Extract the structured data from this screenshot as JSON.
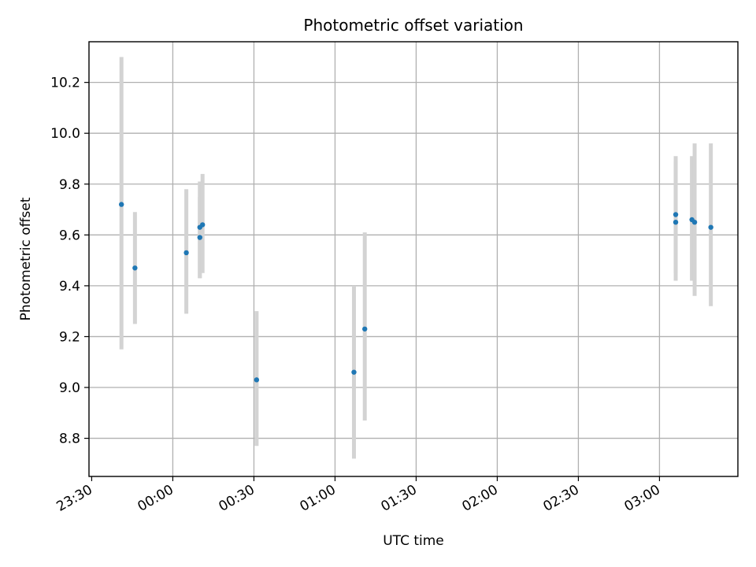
{
  "chart_data": {
    "type": "scatter",
    "title": "Photometric offset variation",
    "xlabel": "UTC time",
    "ylabel": "Photometric offset",
    "grid": true,
    "x_ticks": [
      "23:30",
      "00:00",
      "00:30",
      "01:00",
      "01:30",
      "02:00",
      "02:30",
      "03:00"
    ],
    "y_ticks": [
      "8.8",
      "9.0",
      "9.2",
      "9.4",
      "9.6",
      "9.8",
      "10.0",
      "10.2"
    ],
    "xlim": [
      "23:29",
      "03:29"
    ],
    "ylim": [
      8.65,
      10.36
    ],
    "point_color": "#1f77b4",
    "errorbar_color": "#d3d3d3",
    "points": [
      {
        "x": "23:41",
        "y": 9.72,
        "ylow": 9.15,
        "yhigh": 10.3
      },
      {
        "x": "23:46",
        "y": 9.47,
        "ylow": 9.25,
        "yhigh": 9.69
      },
      {
        "x": "00:05",
        "y": 9.53,
        "ylow": 9.29,
        "yhigh": 9.78
      },
      {
        "x": "00:10",
        "y": 9.59,
        "ylow": 9.43,
        "yhigh": 9.75
      },
      {
        "x": "00:10",
        "y": 9.63,
        "ylow": 9.43,
        "yhigh": 9.81
      },
      {
        "x": "00:11",
        "y": 9.64,
        "ylow": 9.45,
        "yhigh": 9.84
      },
      {
        "x": "00:31",
        "y": 9.03,
        "ylow": 8.77,
        "yhigh": 9.3
      },
      {
        "x": "01:07",
        "y": 9.06,
        "ylow": 8.72,
        "yhigh": 9.4
      },
      {
        "x": "01:11",
        "y": 9.23,
        "ylow": 8.87,
        "yhigh": 9.61
      },
      {
        "x": "03:06",
        "y": 9.65,
        "ylow": 9.42,
        "yhigh": 9.89
      },
      {
        "x": "03:06",
        "y": 9.68,
        "ylow": 9.45,
        "yhigh": 9.91
      },
      {
        "x": "03:12",
        "y": 9.66,
        "ylow": 9.42,
        "yhigh": 9.91
      },
      {
        "x": "03:13",
        "y": 9.65,
        "ylow": 9.36,
        "yhigh": 9.96
      },
      {
        "x": "03:19",
        "y": 9.63,
        "ylow": 9.32,
        "yhigh": 9.96
      }
    ]
  }
}
